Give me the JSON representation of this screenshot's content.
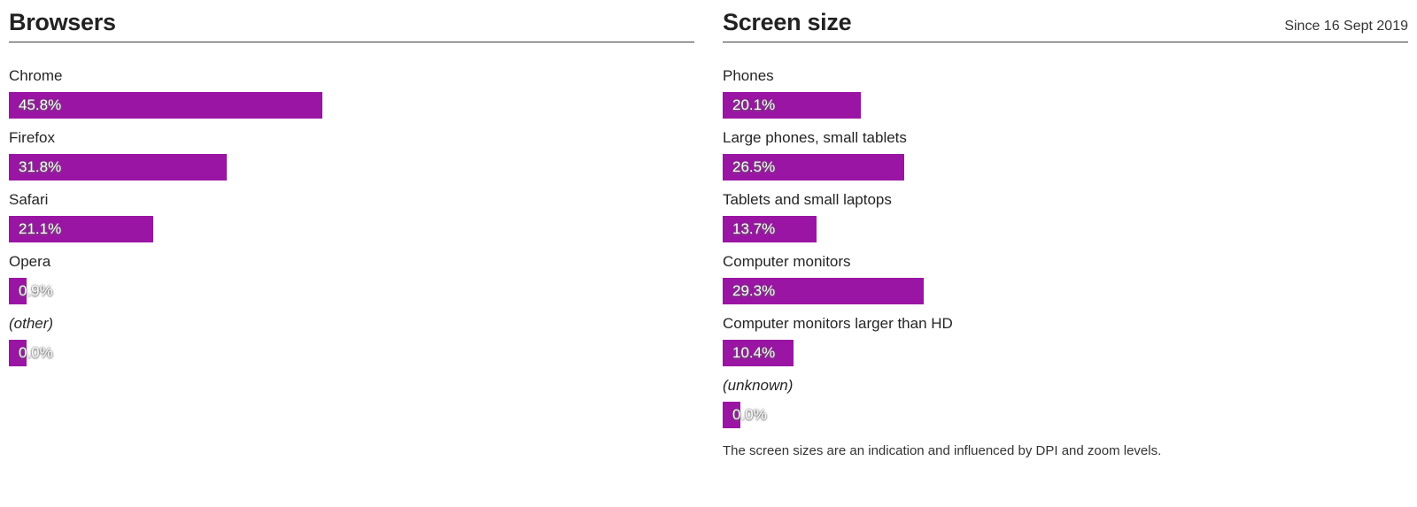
{
  "accent_color": "#9a15a4",
  "text_color": "#252525",
  "panels": [
    {
      "title": "Browsers",
      "period_note": "",
      "footnote": "",
      "rows": [
        {
          "label": "Chrome",
          "value_label": "45.8%",
          "percent": 45.8,
          "italic": false
        },
        {
          "label": "Firefox",
          "value_label": "31.8%",
          "percent": 31.8,
          "italic": false
        },
        {
          "label": "Safari",
          "value_label": "21.1%",
          "percent": 21.1,
          "italic": false
        },
        {
          "label": "Opera",
          "value_label": "0.9%",
          "percent": 0.9,
          "italic": false
        },
        {
          "label": "(other)",
          "value_label": "0.0%",
          "percent": 0.0,
          "italic": true
        }
      ]
    },
    {
      "title": "Screen size",
      "period_note": "Since 16 Sept 2019",
      "footnote": "The screen sizes are an indication and influenced by DPI and zoom levels.",
      "rows": [
        {
          "label": "Phones",
          "value_label": "20.1%",
          "percent": 20.1,
          "italic": false
        },
        {
          "label": "Large phones, small tablets",
          "value_label": "26.5%",
          "percent": 26.5,
          "italic": false
        },
        {
          "label": "Tablets and small laptops",
          "value_label": "13.7%",
          "percent": 13.7,
          "italic": false
        },
        {
          "label": "Computer monitors",
          "value_label": "29.3%",
          "percent": 29.3,
          "italic": false
        },
        {
          "label": "Computer monitors larger than HD",
          "value_label": "10.4%",
          "percent": 10.4,
          "italic": false
        },
        {
          "label": "(unknown)",
          "value_label": "0.0%",
          "percent": 0.0,
          "italic": true
        }
      ]
    }
  ],
  "chart_data": [
    {
      "type": "bar",
      "orientation": "horizontal",
      "title": "Browsers",
      "categories": [
        "Chrome",
        "Firefox",
        "Safari",
        "Opera",
        "(other)"
      ],
      "values": [
        45.8,
        31.8,
        21.1,
        0.9,
        0.0
      ],
      "value_labels": [
        "45.8%",
        "31.8%",
        "21.1%",
        "0.9%",
        "0.0%"
      ],
      "unit": "%",
      "xlim": [
        0,
        100
      ],
      "grid": false,
      "legend": false,
      "bar_color": "#9a15a4"
    },
    {
      "type": "bar",
      "orientation": "horizontal",
      "title": "Screen size",
      "subtitle": "Since 16 Sept 2019",
      "categories": [
        "Phones",
        "Large phones, small tablets",
        "Tablets and small laptops",
        "Computer monitors",
        "Computer monitors larger than HD",
        "(unknown)"
      ],
      "values": [
        20.1,
        26.5,
        13.7,
        29.3,
        10.4,
        0.0
      ],
      "value_labels": [
        "20.1%",
        "26.5%",
        "13.7%",
        "29.3%",
        "10.4%",
        "0.0%"
      ],
      "unit": "%",
      "xlim": [
        0,
        100
      ],
      "grid": false,
      "legend": false,
      "bar_color": "#9a15a4",
      "annotation": "The screen sizes are an indication and influenced by DPI and zoom levels."
    }
  ]
}
